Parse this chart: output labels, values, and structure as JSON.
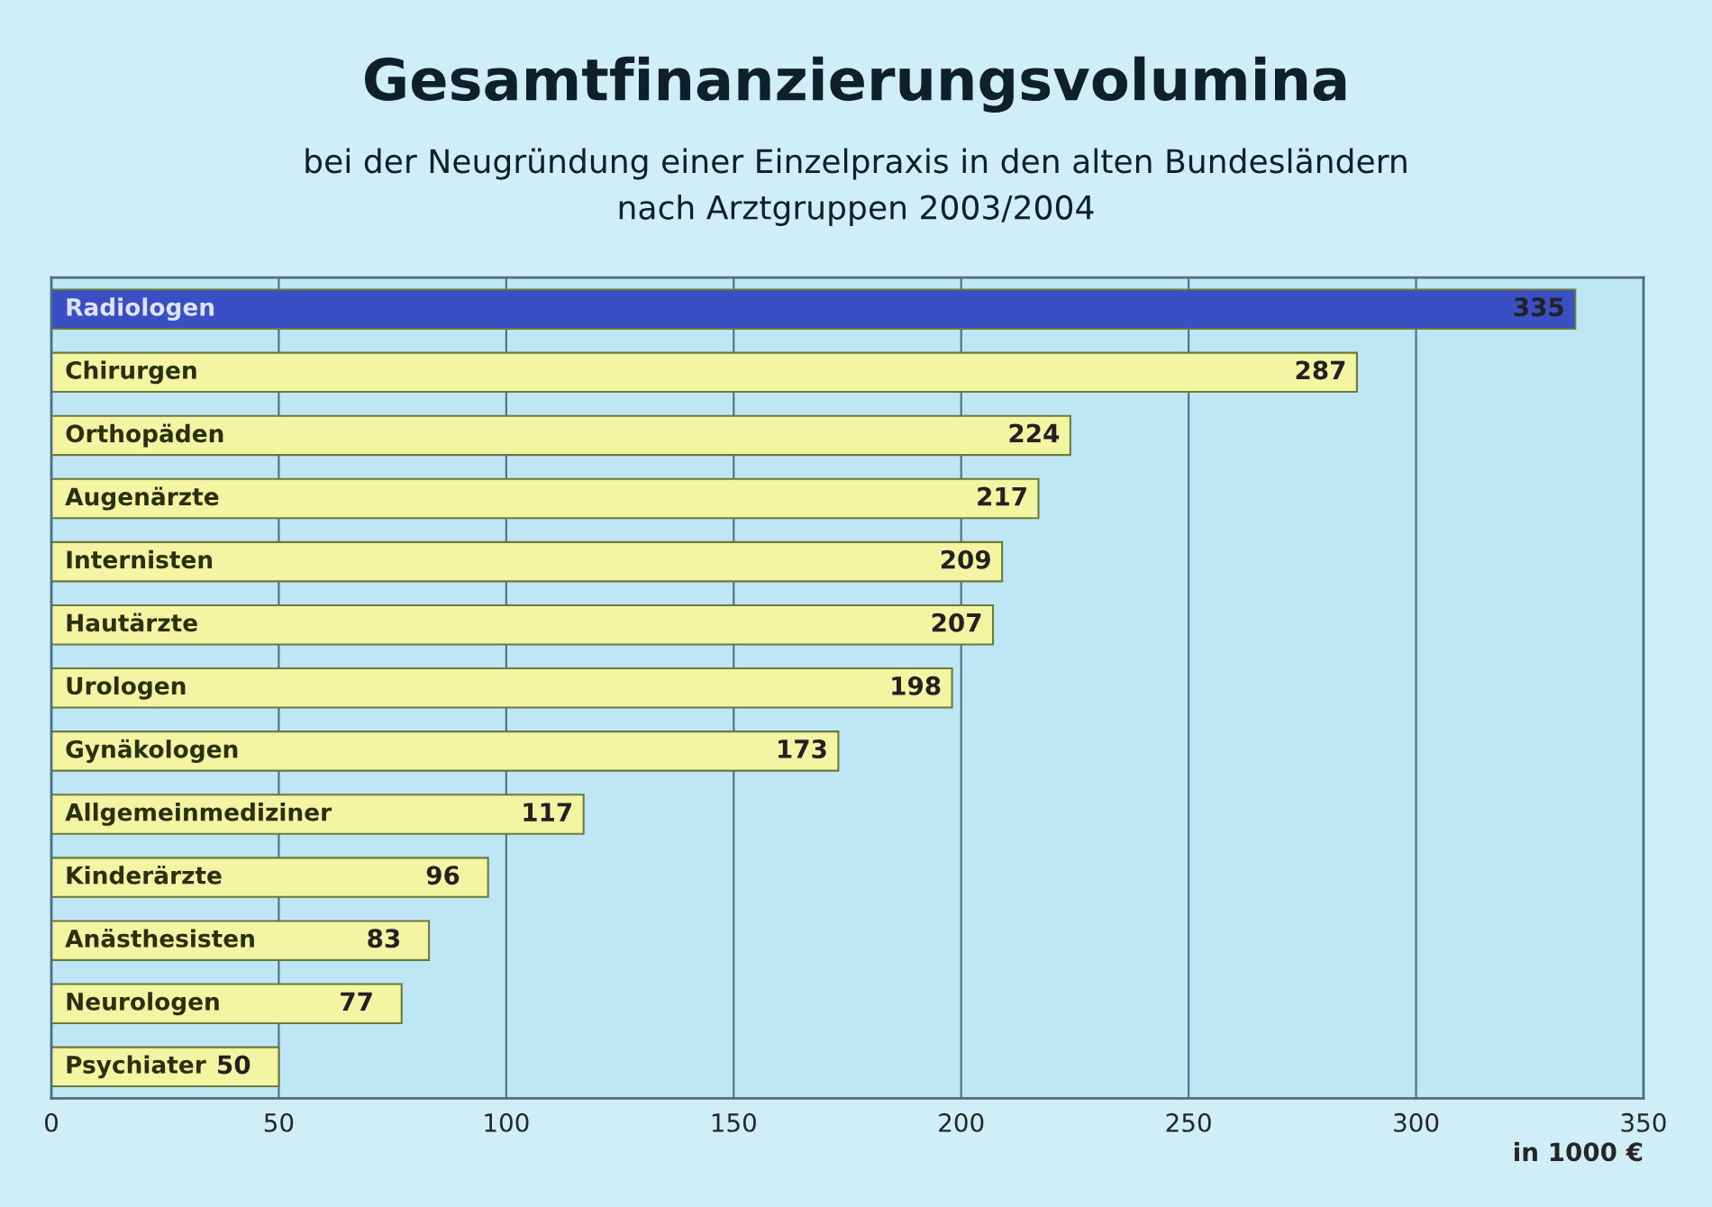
{
  "chart_data": {
    "type": "bar",
    "orientation": "horizontal",
    "title": "Gesamtfinanzierungsvolumina",
    "subtitle": "bei der Neugründung einer Einzelpraxis in den alten Bundesländern\nnach Arztgruppen 2003/2004",
    "xlabel": "in 1000 €",
    "categories": [
      "Radiologen",
      "Chirurgen",
      "Orthopäden",
      "Augenärzte",
      "Internisten",
      "Hautärzte",
      "Urologen",
      "Gynäkologen",
      "Allgemeinmediziner",
      "Kinderärzte",
      "Anästhesisten",
      "Neurologen",
      "Psychiater"
    ],
    "values": [
      335,
      287,
      224,
      217,
      209,
      207,
      198,
      173,
      117,
      96,
      83,
      77,
      50
    ],
    "colors": [
      "#3b4fc4",
      "#f3f5a3",
      "#f3f5a3",
      "#f3f5a3",
      "#f3f5a3",
      "#f3f5a3",
      "#f3f5a3",
      "#f3f5a3",
      "#f3f5a3",
      "#f3f5a3",
      "#f3f5a3",
      "#f3f5a3",
      "#f3f5a3"
    ],
    "data_labels": true,
    "xlim": [
      0,
      350
    ],
    "xticks": [
      0,
      50,
      100,
      150,
      200,
      250,
      300,
      350
    ],
    "grid": "x"
  }
}
